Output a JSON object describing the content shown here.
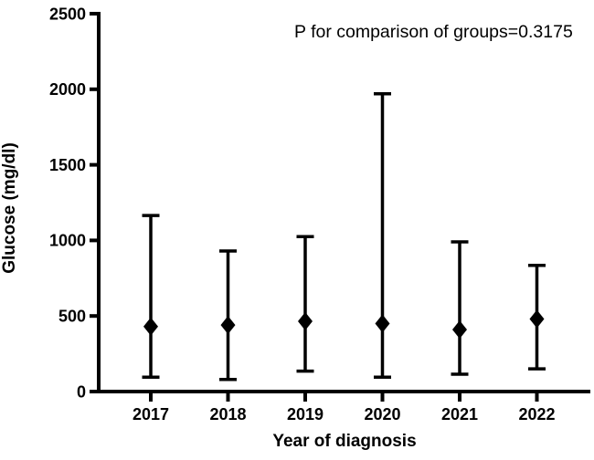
{
  "chart_data": {
    "type": "scatter",
    "subtype": "median-with-min-max-error-bars",
    "title": "",
    "annotation": "P for comparison of groups=0.3175",
    "xlabel": "Year of diagnosis",
    "ylabel": "Glucose (mg/dl)",
    "categories": [
      "2017",
      "2018",
      "2019",
      "2020",
      "2021",
      "2022"
    ],
    "series": [
      {
        "name": "Glucose",
        "marker": "diamond",
        "median": [
          430,
          440,
          465,
          450,
          410,
          480
        ],
        "min": [
          95,
          80,
          135,
          95,
          115,
          150
        ],
        "max": [
          1165,
          930,
          1025,
          1970,
          990,
          835
        ]
      }
    ],
    "ylim": [
      0,
      2500
    ],
    "yticks": [
      0,
      500,
      1000,
      1500,
      2000,
      2500
    ],
    "grid": false,
    "legend": false,
    "colors": {
      "marker": "#000000",
      "line": "#000000",
      "text": "#000000",
      "background": "#ffffff"
    }
  }
}
